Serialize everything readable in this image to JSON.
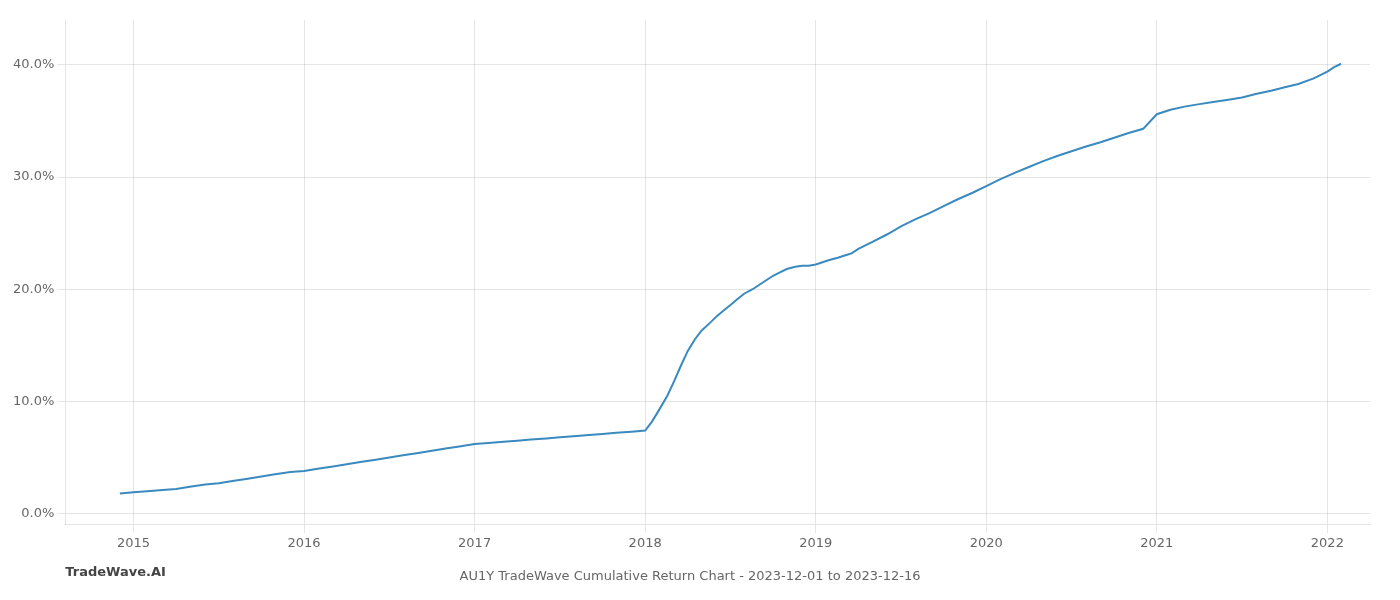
{
  "chart_data": {
    "type": "line",
    "title": "AU1Y TradeWave Cumulative Return Chart - 2023-12-01 to 2023-12-16",
    "annotations": [
      "TradeWave.AI"
    ],
    "color": "#3a8abf",
    "grid": true,
    "marker": "none",
    "line_style": "solid",
    "xlim": [
      2014.6,
      2022.25
    ],
    "xticks": [
      2015,
      2016,
      2017,
      2018,
      2019,
      2020,
      2021,
      2022
    ],
    "ylim": [
      -0.01,
      0.44
    ],
    "yticks": [
      {
        "value": 0.0,
        "label": "0.0%"
      },
      {
        "value": 0.1,
        "label": "10.0%"
      },
      {
        "value": 0.2,
        "label": "20.0%"
      },
      {
        "value": 0.3,
        "label": "30.0%"
      },
      {
        "value": 0.4,
        "label": "40.0%"
      }
    ],
    "x": [
      2014.92,
      2015.0,
      2015.08,
      2015.17,
      2015.25,
      2015.33,
      2015.42,
      2015.5,
      2015.58,
      2015.67,
      2015.75,
      2015.83,
      2015.92,
      2016.0,
      2016.08,
      2016.17,
      2016.25,
      2016.33,
      2016.42,
      2016.5,
      2016.58,
      2016.67,
      2016.75,
      2016.83,
      2016.92,
      2017.0,
      2017.08,
      2017.17,
      2017.25,
      2017.33,
      2017.42,
      2017.5,
      2017.58,
      2017.67,
      2017.75,
      2017.83,
      2017.92,
      2018.0,
      2018.04,
      2018.08,
      2018.13,
      2018.17,
      2018.21,
      2018.25,
      2018.29,
      2018.33,
      2018.38,
      2018.42,
      2018.46,
      2018.5,
      2018.54,
      2018.58,
      2018.63,
      2018.67,
      2018.71,
      2018.75,
      2018.79,
      2018.83,
      2018.88,
      2018.92,
      2018.96,
      2019.0,
      2019.04,
      2019.08,
      2019.13,
      2019.17,
      2019.21,
      2019.25,
      2019.33,
      2019.42,
      2019.5,
      2019.58,
      2019.67,
      2019.75,
      2019.83,
      2019.92,
      2020.0,
      2020.08,
      2020.17,
      2020.25,
      2020.33,
      2020.42,
      2020.5,
      2020.58,
      2020.67,
      2020.75,
      2020.83,
      2020.92,
      2021.0,
      2021.08,
      2021.17,
      2021.25,
      2021.33,
      2021.42,
      2021.5,
      2021.58,
      2021.67,
      2021.75,
      2021.83,
      2021.92,
      2022.0,
      2022.04,
      2022.08
    ],
    "values": [
      0.018,
      0.019,
      0.02,
      0.021,
      0.022,
      0.024,
      0.026,
      0.027,
      0.029,
      0.031,
      0.033,
      0.035,
      0.037,
      0.038,
      0.04,
      0.042,
      0.044,
      0.046,
      0.048,
      0.05,
      0.052,
      0.054,
      0.056,
      0.058,
      0.06,
      0.062,
      0.063,
      0.064,
      0.065,
      0.066,
      0.067,
      0.068,
      0.069,
      0.07,
      0.071,
      0.072,
      0.073,
      0.074,
      0.082,
      0.092,
      0.105,
      0.118,
      0.132,
      0.145,
      0.155,
      0.163,
      0.17,
      0.176,
      0.181,
      0.186,
      0.191,
      0.196,
      0.2,
      0.204,
      0.208,
      0.212,
      0.215,
      0.218,
      0.22,
      0.221,
      0.221,
      0.222,
      0.224,
      0.226,
      0.228,
      0.23,
      0.232,
      0.236,
      0.242,
      0.249,
      0.256,
      0.262,
      0.268,
      0.274,
      0.28,
      0.286,
      0.292,
      0.298,
      0.304,
      0.309,
      0.314,
      0.319,
      0.323,
      0.327,
      0.331,
      0.335,
      0.339,
      0.343,
      0.356,
      0.36,
      0.363,
      0.365,
      0.367,
      0.369,
      0.371,
      0.374,
      0.377,
      0.38,
      0.383,
      0.388,
      0.394,
      0.398,
      0.401
    ]
  }
}
